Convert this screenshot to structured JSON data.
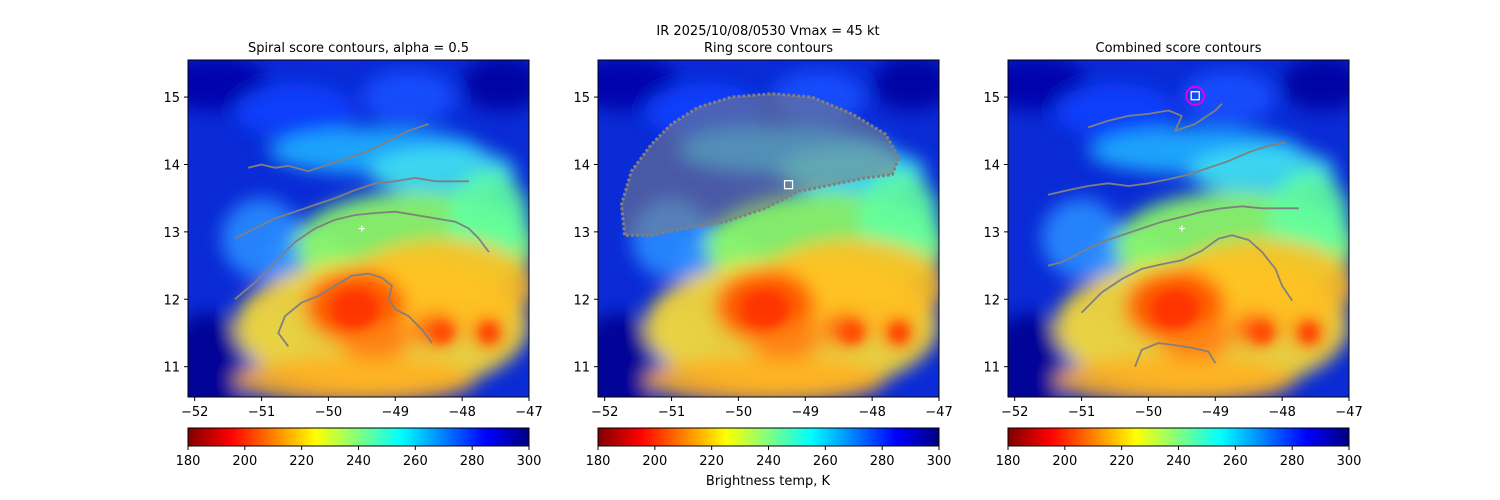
{
  "suptitle": {
    "line1": "IR  2025/10/08/0530    Vmax = 45 kt"
  },
  "colorbar_label": "Brightness temp, K",
  "colormap": {
    "name": "jet_r",
    "stops": [
      "#800000",
      "#ff0000",
      "#ff8000",
      "#ffff00",
      "#80ff80",
      "#00ffff",
      "#0080ff",
      "#0000ff",
      "#000080"
    ]
  },
  "chart_data": [
    {
      "type": "heatmap",
      "title": "Spiral score contours, alpha =  0.5",
      "xlim": [
        -52.1,
        -47.0
      ],
      "ylim": [
        10.55,
        15.55
      ],
      "x_ticks": [
        -52,
        -51,
        -50,
        -49,
        -48,
        -47
      ],
      "y_ticks": [
        11,
        12,
        13,
        14,
        15
      ],
      "x_tick_labels": [
        "−52",
        "−51",
        "−50",
        "−49",
        "−48",
        "−47"
      ],
      "y_tick_labels": [
        "11",
        "12",
        "13",
        "14",
        "15"
      ],
      "colorbar": {
        "min": 180,
        "max": 300,
        "ticks": [
          180,
          200,
          220,
          240,
          260,
          280,
          300
        ]
      },
      "center_marker": {
        "lon": -49.5,
        "lat": 13.05
      },
      "contours": [
        [
          [
            -51.2,
            13.95
          ],
          [
            -51.0,
            14.0
          ],
          [
            -50.8,
            13.95
          ],
          [
            -50.6,
            13.98
          ],
          [
            -50.3,
            13.9
          ],
          [
            -50.0,
            14.0
          ],
          [
            -49.7,
            14.1
          ],
          [
            -49.4,
            14.2
          ],
          [
            -49.1,
            14.35
          ],
          [
            -48.8,
            14.5
          ],
          [
            -48.5,
            14.6
          ]
        ],
        [
          [
            -51.4,
            12.9
          ],
          [
            -51.1,
            13.05
          ],
          [
            -50.8,
            13.2
          ],
          [
            -50.5,
            13.3
          ],
          [
            -50.2,
            13.4
          ],
          [
            -49.9,
            13.5
          ],
          [
            -49.6,
            13.62
          ],
          [
            -49.3,
            13.72
          ],
          [
            -49.0,
            13.75
          ],
          [
            -48.7,
            13.8
          ],
          [
            -48.4,
            13.75
          ],
          [
            -48.1,
            13.75
          ],
          [
            -47.9,
            13.75
          ]
        ],
        [
          [
            -51.4,
            12.0
          ],
          [
            -51.1,
            12.25
          ],
          [
            -50.8,
            12.55
          ],
          [
            -50.5,
            12.85
          ],
          [
            -50.2,
            13.05
          ],
          [
            -49.9,
            13.18
          ],
          [
            -49.6,
            13.25
          ],
          [
            -49.3,
            13.28
          ],
          [
            -49.0,
            13.3
          ],
          [
            -48.7,
            13.25
          ],
          [
            -48.4,
            13.2
          ],
          [
            -48.1,
            13.15
          ],
          [
            -47.9,
            13.05
          ],
          [
            -47.75,
            12.9
          ],
          [
            -47.6,
            12.7
          ]
        ],
        [
          [
            -50.6,
            11.3
          ],
          [
            -50.75,
            11.5
          ],
          [
            -50.65,
            11.75
          ],
          [
            -50.4,
            11.95
          ],
          [
            -50.15,
            12.05
          ],
          [
            -49.9,
            12.2
          ],
          [
            -49.65,
            12.35
          ],
          [
            -49.4,
            12.38
          ],
          [
            -49.2,
            12.32
          ],
          [
            -49.05,
            12.2
          ],
          [
            -49.1,
            12.0
          ],
          [
            -49.0,
            11.85
          ],
          [
            -48.8,
            11.75
          ],
          [
            -48.6,
            11.55
          ],
          [
            -48.45,
            11.35
          ]
        ]
      ]
    },
    {
      "type": "heatmap",
      "title": "Ring score contours",
      "xlim": [
        -52.1,
        -47.0
      ],
      "ylim": [
        10.55,
        15.55
      ],
      "x_ticks": [
        -52,
        -51,
        -50,
        -49,
        -48,
        -47
      ],
      "y_ticks": [
        11,
        12,
        13,
        14,
        15
      ],
      "x_tick_labels": [
        "−52",
        "−51",
        "−50",
        "−49",
        "−48",
        "−47"
      ],
      "y_tick_labels": [
        "11",
        "12",
        "13",
        "14",
        "15"
      ],
      "colorbar": {
        "min": 180,
        "max": 300,
        "ticks": [
          180,
          200,
          220,
          240,
          260,
          280,
          300
        ]
      },
      "square_marker": {
        "lon": -49.25,
        "lat": 13.7
      },
      "ring_region": [
        [
          -51.7,
          12.95
        ],
        [
          -51.75,
          13.4
        ],
        [
          -51.6,
          13.9
        ],
        [
          -51.3,
          14.3
        ],
        [
          -51.0,
          14.6
        ],
        [
          -50.6,
          14.85
        ],
        [
          -50.1,
          15.0
        ],
        [
          -49.5,
          15.05
        ],
        [
          -48.9,
          15.0
        ],
        [
          -48.3,
          14.75
        ],
        [
          -47.8,
          14.45
        ],
        [
          -47.6,
          14.1
        ],
        [
          -47.7,
          13.85
        ],
        [
          -48.1,
          13.8
        ],
        [
          -48.6,
          13.7
        ],
        [
          -49.1,
          13.6
        ],
        [
          -49.6,
          13.35
        ],
        [
          -50.2,
          13.15
        ],
        [
          -50.8,
          13.05
        ],
        [
          -51.3,
          12.95
        ]
      ]
    },
    {
      "type": "heatmap",
      "title": "Combined score contours",
      "xlim": [
        -52.1,
        -47.0
      ],
      "ylim": [
        10.55,
        15.55
      ],
      "x_ticks": [
        -52,
        -51,
        -50,
        -49,
        -48,
        -47
      ],
      "y_ticks": [
        11,
        12,
        13,
        14,
        15
      ],
      "x_tick_labels": [
        "−52",
        "−51",
        "−50",
        "−49",
        "−48",
        "−47"
      ],
      "y_tick_labels": [
        "11",
        "12",
        "13",
        "14",
        "15"
      ],
      "colorbar": {
        "min": 180,
        "max": 300,
        "ticks": [
          180,
          200,
          220,
          240,
          260,
          280,
          300
        ]
      },
      "center_marker": {
        "lon": -49.5,
        "lat": 13.05
      },
      "square_marker": {
        "lon": -49.3,
        "lat": 15.02
      },
      "circle_marker": {
        "lon": -49.3,
        "lat": 15.02
      },
      "contours": [
        [
          [
            -50.9,
            14.55
          ],
          [
            -50.6,
            14.65
          ],
          [
            -50.3,
            14.72
          ],
          [
            -50.0,
            14.75
          ],
          [
            -49.7,
            14.8
          ],
          [
            -49.5,
            14.72
          ],
          [
            -49.6,
            14.5
          ],
          [
            -49.3,
            14.6
          ],
          [
            -49.0,
            14.8
          ],
          [
            -48.9,
            14.9
          ]
        ],
        [
          [
            -51.5,
            13.55
          ],
          [
            -51.2,
            13.62
          ],
          [
            -50.9,
            13.68
          ],
          [
            -50.6,
            13.72
          ],
          [
            -50.3,
            13.68
          ],
          [
            -50.0,
            13.72
          ],
          [
            -49.7,
            13.78
          ],
          [
            -49.4,
            13.85
          ],
          [
            -49.1,
            13.95
          ],
          [
            -48.8,
            14.05
          ],
          [
            -48.5,
            14.18
          ],
          [
            -48.2,
            14.28
          ],
          [
            -47.95,
            14.33
          ]
        ],
        [
          [
            -51.5,
            12.5
          ],
          [
            -51.3,
            12.55
          ],
          [
            -51.0,
            12.7
          ],
          [
            -50.7,
            12.85
          ],
          [
            -50.4,
            12.95
          ],
          [
            -50.1,
            13.05
          ],
          [
            -49.8,
            13.15
          ],
          [
            -49.5,
            13.22
          ],
          [
            -49.2,
            13.3
          ],
          [
            -48.9,
            13.35
          ],
          [
            -48.6,
            13.38
          ],
          [
            -48.3,
            13.35
          ],
          [
            -48.0,
            13.35
          ],
          [
            -47.75,
            13.35
          ]
        ],
        [
          [
            -51.0,
            11.8
          ],
          [
            -50.7,
            12.1
          ],
          [
            -50.4,
            12.3
          ],
          [
            -50.1,
            12.45
          ],
          [
            -49.8,
            12.52
          ],
          [
            -49.5,
            12.58
          ],
          [
            -49.2,
            12.72
          ],
          [
            -48.95,
            12.9
          ],
          [
            -48.75,
            12.95
          ],
          [
            -48.5,
            12.88
          ],
          [
            -48.3,
            12.7
          ],
          [
            -48.1,
            12.45
          ],
          [
            -48.0,
            12.2
          ],
          [
            -47.85,
            11.98
          ]
        ],
        [
          [
            -50.2,
            11.0
          ],
          [
            -50.1,
            11.25
          ],
          [
            -49.85,
            11.35
          ],
          [
            -49.6,
            11.32
          ],
          [
            -49.35,
            11.28
          ],
          [
            -49.1,
            11.22
          ],
          [
            -49.0,
            11.05
          ]
        ]
      ]
    }
  ]
}
